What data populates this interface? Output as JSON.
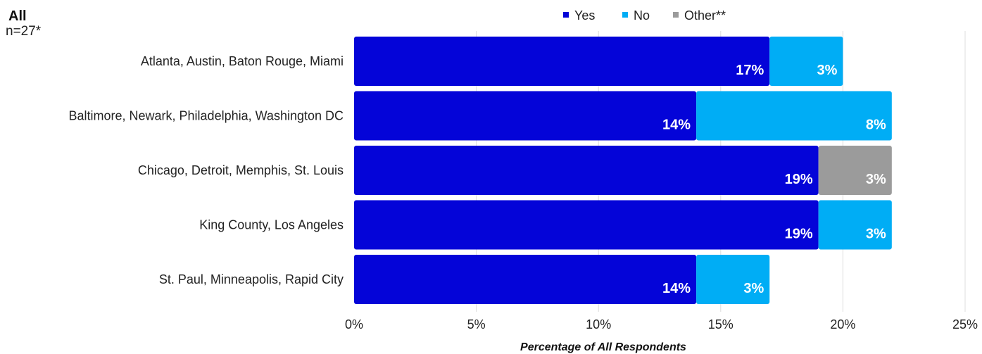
{
  "chart_data": {
    "type": "bar",
    "orientation": "horizontal",
    "stacked": true,
    "title": "All",
    "subtitle": "n=27*",
    "xlabel": "Percentage of All Respondents",
    "ylabel": "",
    "xlim": [
      0,
      25
    ],
    "x_ticks": [
      "0%",
      "5%",
      "10%",
      "15%",
      "20%",
      "25%"
    ],
    "grid": true,
    "legend_position": "top",
    "categories": [
      "Atlanta, Austin,  Baton Rouge, Miami",
      "Baltimore, Newark, Philadelphia, Washington DC",
      "Chicago, Detroit, Memphis, St. Louis",
      "King County, Los Angeles",
      "St. Paul, Minneapolis, Rapid City"
    ],
    "series": [
      {
        "name": "Yes",
        "color": "#0404d8",
        "values": [
          17,
          14,
          19,
          19,
          14
        ],
        "labels": [
          "17%",
          "14%",
          "19%",
          "19%",
          "14%"
        ]
      },
      {
        "name": "No",
        "color": "#00adf5",
        "values": [
          3,
          8,
          0,
          3,
          3
        ],
        "labels": [
          "3%",
          "8%",
          "",
          "3%",
          "3%"
        ]
      },
      {
        "name": "Other**",
        "color": "#9b9b9b",
        "values": [
          0,
          0,
          3,
          0,
          0
        ],
        "labels": [
          "",
          "",
          "3%",
          "",
          ""
        ]
      }
    ]
  }
}
